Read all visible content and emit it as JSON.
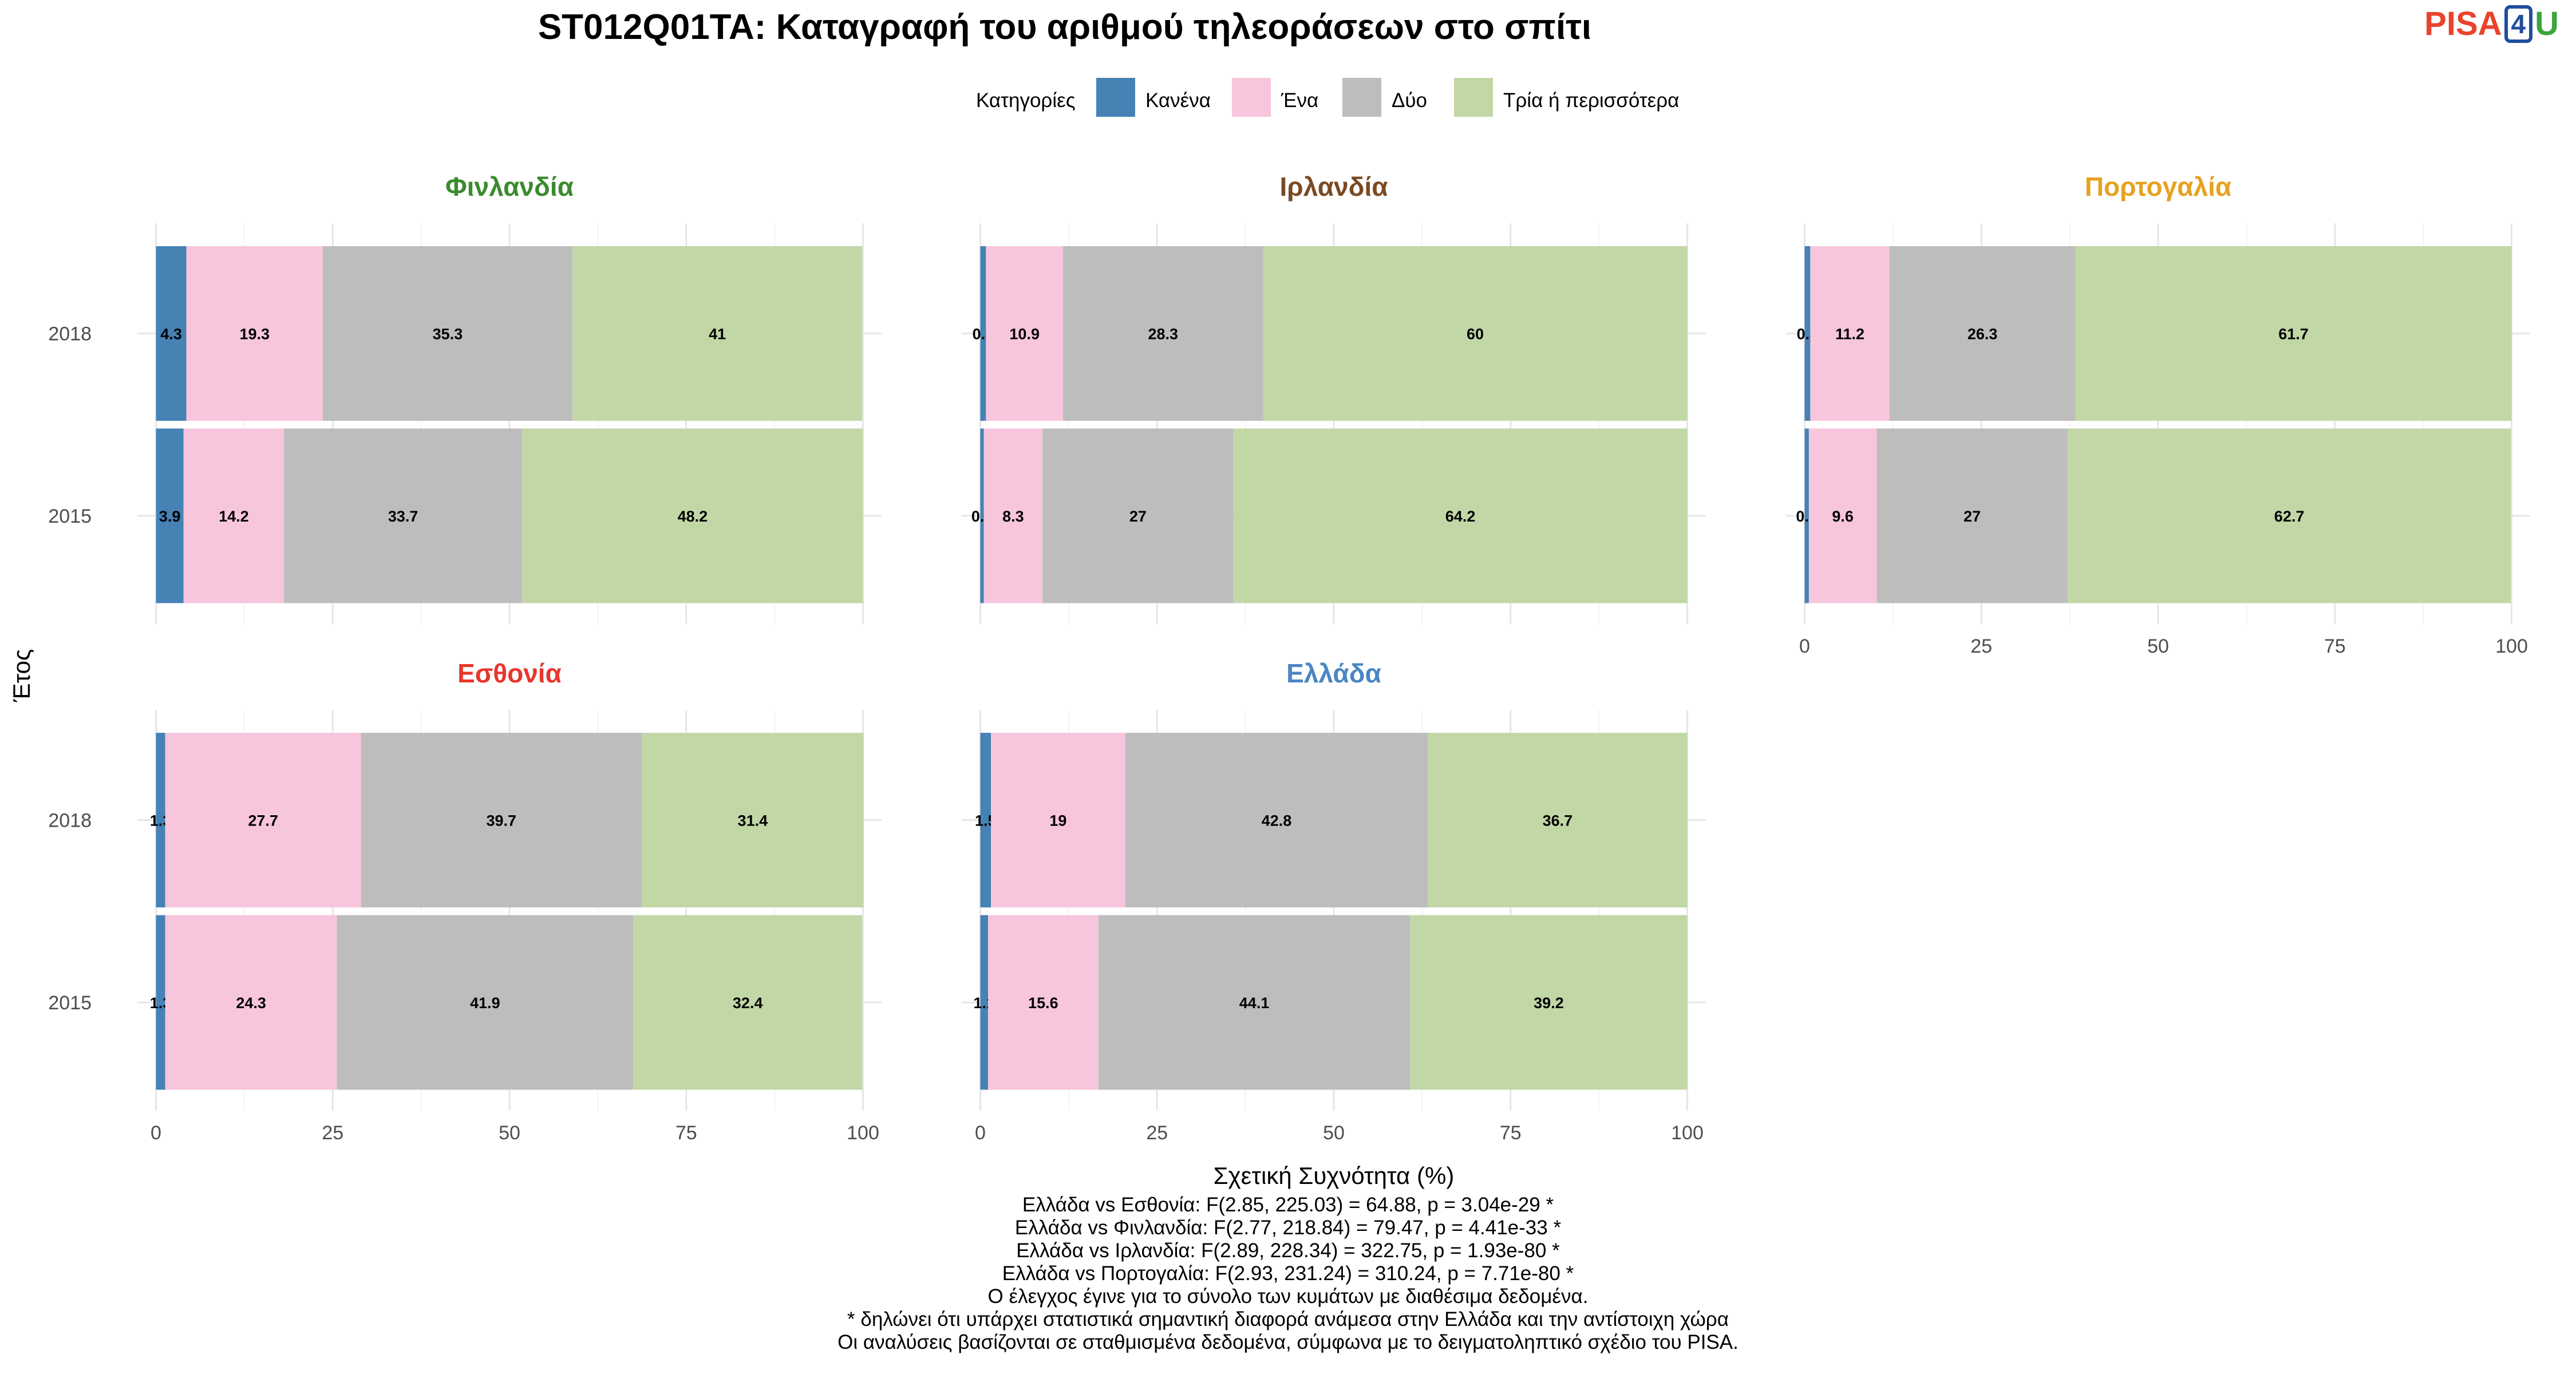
{
  "logo": {
    "part1": "PISA",
    "part2": "4",
    "part3": "U"
  },
  "chart_data": {
    "type": "bar",
    "orientation": "horizontal-stacked",
    "title": "ST012Q01TA: Καταγραφή του αριθμού τηλεοράσεων στο σπίτι",
    "xlabel": "Σχετική Συχνότητα (%)",
    "ylabel": "Έτος",
    "xlim": [
      0,
      100
    ],
    "xticks": [
      "0",
      "25",
      "50",
      "75",
      "100"
    ],
    "legend": {
      "title": "Κατηγορίες",
      "position": "top",
      "items": [
        {
          "name": "Κανένα",
          "color": "#4682b4"
        },
        {
          "name": "Ένα",
          "color": "#f7c6dc"
        },
        {
          "name": "Δύο",
          "color": "#bdbdbd"
        },
        {
          "name": "Τρία ή περισσότερα",
          "color": "#c2d7a6"
        }
      ]
    },
    "years": [
      "2018",
      "2015"
    ],
    "panels": [
      {
        "country": "Φινλανδία",
        "color": "#3a8b2d",
        "bars": [
          {
            "year": "2018",
            "values": [
              4.3,
              19.3,
              35.3,
              41
            ]
          },
          {
            "year": "2015",
            "values": [
              3.9,
              14.2,
              33.7,
              48.2
            ]
          }
        ]
      },
      {
        "country": "Ιρλανδία",
        "color": "#7a4a22",
        "bars": [
          {
            "year": "2018",
            "values": [
              0.8,
              10.9,
              28.3,
              60
            ]
          },
          {
            "year": "2015",
            "values": [
              0.5,
              8.3,
              27,
              64.2
            ]
          }
        ]
      },
      {
        "country": "Πορτογαλία",
        "color": "#e6a21f",
        "bars": [
          {
            "year": "2018",
            "values": [
              0.8,
              11.2,
              26.3,
              61.7
            ]
          },
          {
            "year": "2015",
            "values": [
              0.6,
              9.6,
              27,
              62.7
            ]
          }
        ]
      },
      {
        "country": "Εσθονία",
        "color": "#e8362b",
        "bars": [
          {
            "year": "2018",
            "values": [
              1.3,
              27.7,
              39.7,
              31.4
            ]
          },
          {
            "year": "2015",
            "values": [
              1.3,
              24.3,
              41.9,
              32.4
            ]
          }
        ]
      },
      {
        "country": "Ελλάδα",
        "color": "#4a86c2",
        "bars": [
          {
            "year": "2018",
            "values": [
              1.5,
              19,
              42.8,
              36.7
            ]
          },
          {
            "year": "2015",
            "values": [
              1.1,
              15.6,
              44.1,
              39.2
            ]
          }
        ]
      }
    ]
  },
  "footnotes": [
    "Ελλάδα vs Εσθονία: F(2.85, 225.03) = 64.88, p = 3.04e-29 *",
    "Ελλάδα vs Φινλανδία: F(2.77, 218.84) = 79.47, p = 4.41e-33 *",
    "Ελλάδα vs Ιρλανδία: F(2.89, 228.34) = 322.75, p = 1.93e-80 *",
    "Ελλάδα vs Πορτογαλία: F(2.93, 231.24) = 310.24, p = 7.71e-80 *",
    "Ο έλεγχος έγινε για το σύνολο των κυμάτων με διαθέσιμα δεδομένα.",
    "* δηλώνει ότι υπάρχει στατιστικά σημαντική διαφορά ανάμεσα στην Ελλάδα και την αντίστοιχη χώρα",
    "Οι αναλύσεις βασίζονται σε σταθμισμένα δεδομένα, σύμφωνα με το δειγματοληπτικό σχέδιο του PISA."
  ]
}
